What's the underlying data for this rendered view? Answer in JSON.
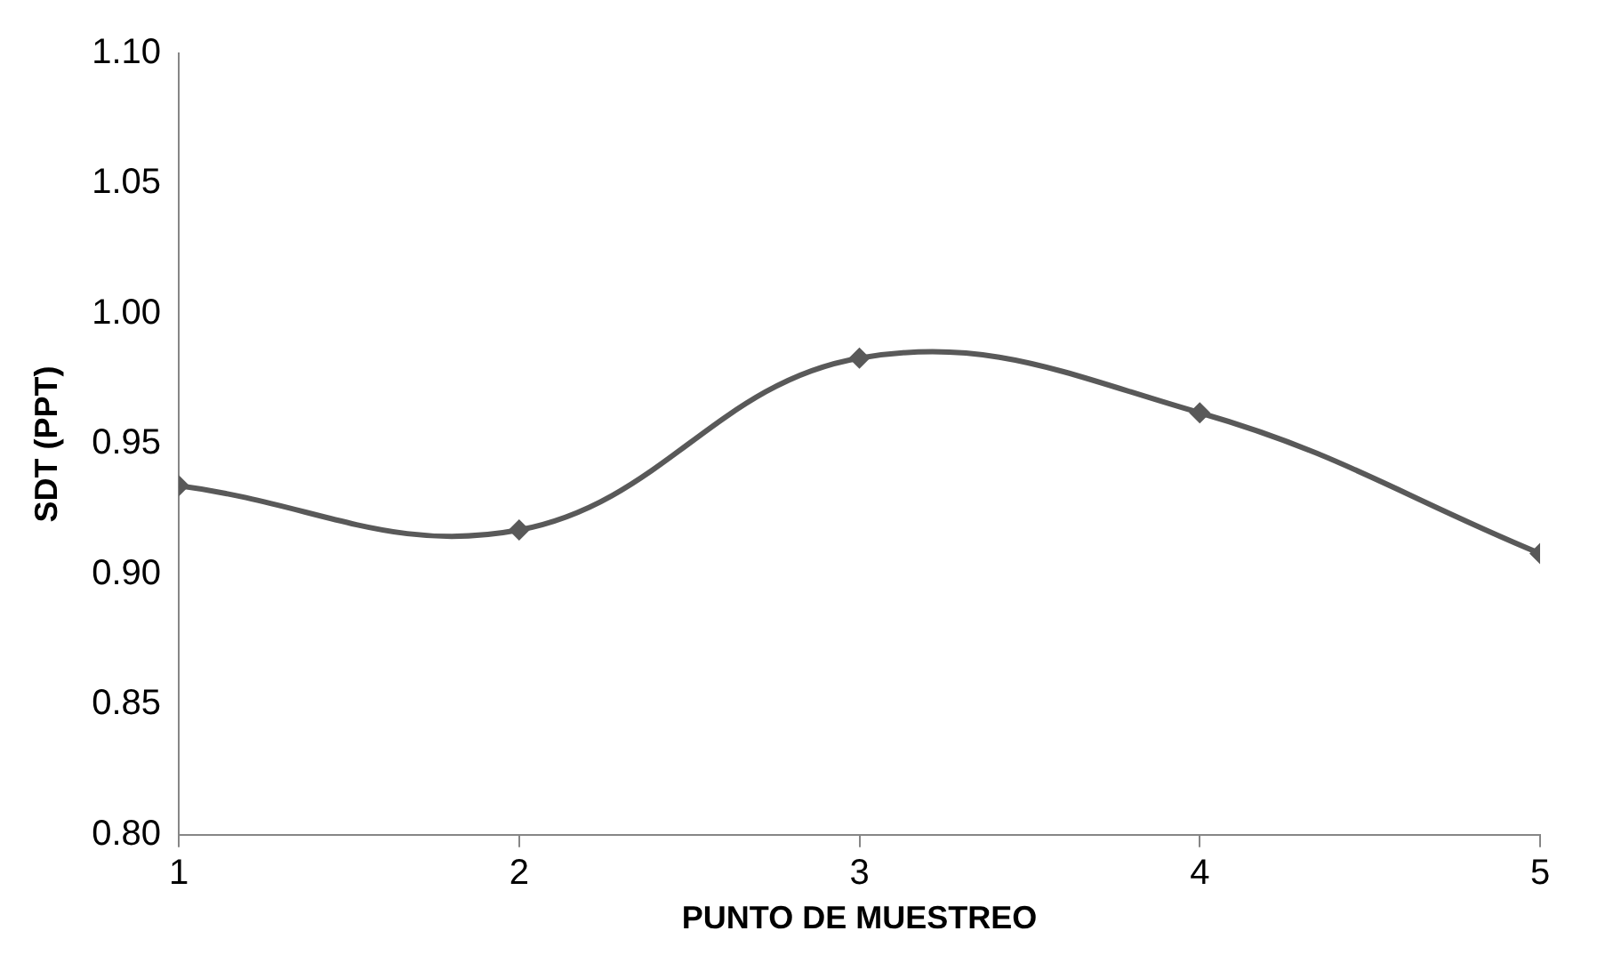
{
  "chart_data": {
    "type": "line",
    "xlabel": "PUNTO DE MUESTREO",
    "ylabel": "SDT (PPT)",
    "x": [
      1,
      2,
      3,
      4,
      5
    ],
    "series": [
      {
        "color": "#595959",
        "values": [
          0.934,
          0.917,
          0.983,
          0.962,
          0.908
        ]
      }
    ],
    "xlim": [
      1,
      5
    ],
    "xticks": [
      1,
      2,
      3,
      4,
      5
    ],
    "ylim": [
      0.8,
      1.1
    ],
    "yticks": [
      {
        "value": 0.8,
        "label": "0.80"
      },
      {
        "value": 0.85,
        "label": "0.85"
      },
      {
        "value": 0.9,
        "label": "0.90"
      },
      {
        "value": 0.95,
        "label": "0.95"
      },
      {
        "value": 1.0,
        "label": "1.00"
      },
      {
        "value": 1.05,
        "label": "1.05"
      },
      {
        "value": 1.1,
        "label": "1.10"
      }
    ],
    "grid": false,
    "legend": false,
    "marker": "diamond",
    "line_style": "solid"
  }
}
